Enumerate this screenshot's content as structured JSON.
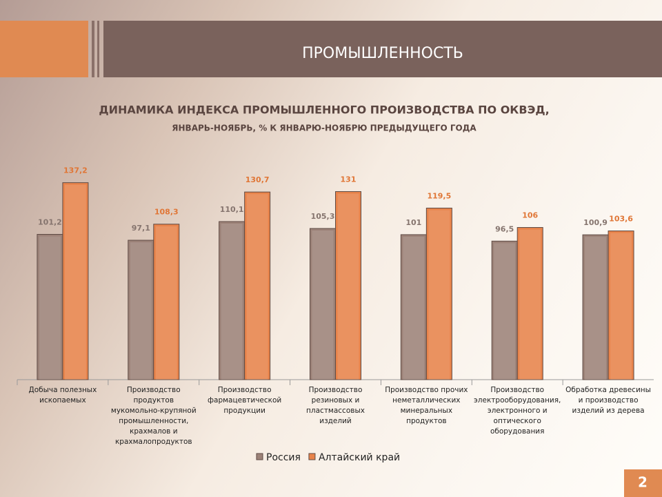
{
  "header": {
    "title": "ПРОМЫШЛЕННОСТЬ"
  },
  "chart_data": {
    "type": "bar",
    "title": "ДИНАМИКА ИНДЕКСА ПРОМЫШЛЕННОГО ПРОИЗВОДСТВА ПО ОКВЭД,",
    "subtitle": "ЯНВАРЬ-НОЯБРЬ, % К ЯНВАРЮ-НОЯБРЮ ПРЕДЫДУЩЕГО ГОДА",
    "categories": [
      "Добыча полезных ископаемых",
      "Производство продуктов мукомольно-крупяной промышленности, крахмалов и крахмалопродуктов",
      "Производство фармацевтической продукции",
      "Производство резиновых и пластмассовых изделий",
      "Производство прочих неметаллических минеральных продуктов",
      "Производство электрооборудования, электронного и оптического оборудования",
      "Обработка древесины и производство изделий из дерева"
    ],
    "series": [
      {
        "name": "Россия",
        "color": "#9c8278",
        "label_color": "#85746e",
        "values": [
          101.2,
          97.1,
          110.1,
          105.3,
          101,
          96.5,
          100.9
        ],
        "value_labels": [
          "101,2",
          "97,1",
          "110,1",
          "105,3",
          "101",
          "96,5",
          "100,9"
        ]
      },
      {
        "name": "Алтайский край",
        "color": "#e8834a",
        "label_color": "#e07636",
        "values": [
          137.2,
          108.3,
          130.7,
          131,
          119.5,
          106,
          103.6
        ],
        "value_labels": [
          "137,2",
          "108,3",
          "130,7",
          "131",
          "119,5",
          "106",
          "103,6"
        ]
      }
    ],
    "ylim": [
      0,
      150
    ]
  },
  "page_number": 2
}
